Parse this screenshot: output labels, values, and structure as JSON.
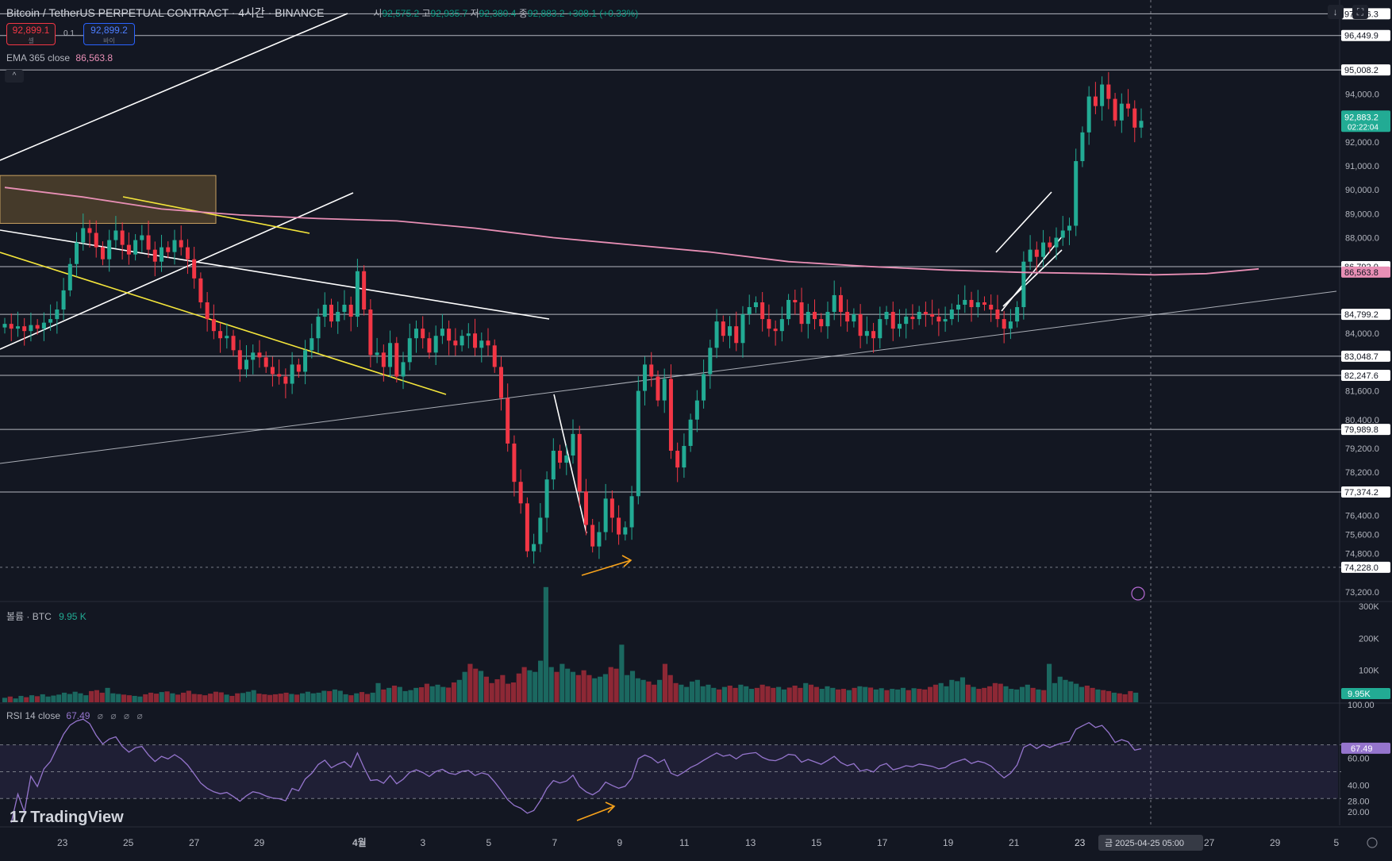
{
  "header": {
    "symbol": "Bitcoin / TetherUS PERPETUAL CONTRACT · 4시간 · BINANCE",
    "ohlc": [
      {
        "k": "시",
        "v": "92,575.2"
      },
      {
        "k": "고",
        "v": "92,935.7"
      },
      {
        "k": "저",
        "v": "92,380.4"
      },
      {
        "k": "종",
        "v": "92,883.2"
      }
    ],
    "change": "+308.1 (+0.33%)"
  },
  "trade": {
    "sell_price": "92,899.1",
    "sell_label": "셀",
    "spread": "0.1",
    "buy_price": "92,899.2",
    "buy_label": "바이"
  },
  "ema_legend": {
    "label": "EMA 365 close",
    "value": "86,563.8"
  },
  "volume_legend": {
    "label": "볼륨 · BTC",
    "value": "9.95 K"
  },
  "rsi_legend": {
    "label": "RSI 14 close",
    "value": "67.49",
    "icons": "⌀ ⌀ ⌀ ⌀"
  },
  "brand": {
    "logo_mark": "17",
    "name": "TradingView"
  },
  "icons": {
    "down_arrow": "↓",
    "fullscreen": "⛶",
    "collapse": "^"
  },
  "colors": {
    "background": "#131722",
    "up": "#22ab94",
    "down": "#f23645",
    "ema": "#e88fb5",
    "rsi": "#9575cd",
    "trendline_white": "#ffffff",
    "trendline_yellow": "#f5e63b",
    "arrow": "#f7a21b",
    "zone": "#a27a3a"
  },
  "chart_data": {
    "type": "candlestick",
    "timeframe": "4h",
    "x_ticks": [
      "23",
      "25",
      "27",
      "29",
      "4월",
      "3",
      "5",
      "7",
      "9",
      "11",
      "13",
      "15",
      "17",
      "19",
      "21",
      "23",
      "27",
      "29",
      "5"
    ],
    "current_time_label": "금 2025-04-25  05:00",
    "price_axis": {
      "tick_labels": [
        "94,000.0",
        "92,000.0",
        "91,000.0",
        "90,000.0",
        "89,000.0",
        "88,000.0",
        "84,000.0",
        "81,600.0",
        "80,400.0",
        "79,200.0",
        "78,200.0",
        "76,400.0",
        "75,600.0",
        "74,800.0",
        "73,200.0"
      ],
      "ylim": [
        72800,
        97600
      ]
    },
    "horizontal_levels": [
      97356.3,
      96449.9,
      95008.2,
      86792.0,
      84799.2,
      83048.7,
      82247.6,
      79989.8,
      77374.2
    ],
    "dashed_level": 74228.0,
    "last_price": {
      "value": "92,883.2",
      "countdown": "02:22:04"
    },
    "ema365_value": "86,563.8",
    "level_labels": [
      "97,356.3",
      "96,449.9",
      "95,008.2",
      "86,792.0",
      "84,799.2",
      "83,048.7",
      "82,247.6",
      "79,989.8",
      "77,374.2",
      "74,228.0"
    ],
    "close_path": [
      [
        0,
        84400
      ],
      [
        3,
        84200
      ],
      [
        6,
        84300
      ],
      [
        9,
        84100
      ],
      [
        12,
        84350
      ],
      [
        15,
        84200
      ],
      [
        18,
        84450
      ],
      [
        21,
        84600
      ],
      [
        24,
        85000
      ],
      [
        27,
        85800
      ],
      [
        28,
        86900
      ],
      [
        29,
        87800
      ],
      [
        30,
        88400
      ],
      [
        31,
        88200
      ],
      [
        32,
        87600
      ],
      [
        33,
        87100
      ],
      [
        34,
        87900
      ],
      [
        35,
        88300
      ],
      [
        36,
        87700
      ],
      [
        37,
        87300
      ],
      [
        38,
        87900
      ],
      [
        39,
        88100
      ],
      [
        40,
        87500
      ],
      [
        41,
        87000
      ],
      [
        42,
        87600
      ],
      [
        43,
        87400
      ],
      [
        44,
        87900
      ],
      [
        45,
        87600
      ],
      [
        46,
        87100
      ],
      [
        47,
        86300
      ],
      [
        48,
        85300
      ],
      [
        49,
        84600
      ],
      [
        50,
        84100
      ],
      [
        51,
        83800
      ],
      [
        52,
        83900
      ],
      [
        53,
        83300
      ],
      [
        54,
        82500
      ],
      [
        55,
        82900
      ],
      [
        56,
        83200
      ],
      [
        57,
        83000
      ],
      [
        58,
        82600
      ],
      [
        59,
        82300
      ],
      [
        60,
        82200
      ],
      [
        61,
        81900
      ],
      [
        62,
        82700
      ],
      [
        63,
        82400
      ],
      [
        64,
        83300
      ],
      [
        65,
        83800
      ],
      [
        66,
        84700
      ],
      [
        67,
        85200
      ],
      [
        68,
        84500
      ],
      [
        69,
        84900
      ],
      [
        70,
        85200
      ],
      [
        71,
        84700
      ],
      [
        72,
        86600
      ],
      [
        73,
        85000
      ],
      [
        74,
        83100
      ],
      [
        75,
        83200
      ],
      [
        76,
        82600
      ],
      [
        77,
        83600
      ],
      [
        78,
        82200
      ],
      [
        79,
        82800
      ],
      [
        80,
        83800
      ],
      [
        81,
        84200
      ],
      [
        82,
        83800
      ],
      [
        83,
        83200
      ],
      [
        84,
        83900
      ],
      [
        85,
        84200
      ],
      [
        86,
        83700
      ],
      [
        87,
        83500
      ],
      [
        88,
        83900
      ],
      [
        89,
        84000
      ],
      [
        90,
        83400
      ],
      [
        91,
        83700
      ],
      [
        92,
        83500
      ],
      [
        93,
        82600
      ],
      [
        94,
        81300
      ],
      [
        95,
        79400
      ],
      [
        96,
        77800
      ],
      [
        97,
        76900
      ],
      [
        98,
        74900
      ],
      [
        99,
        75200
      ],
      [
        100,
        76300
      ],
      [
        101,
        77900
      ],
      [
        102,
        79100
      ],
      [
        103,
        78600
      ],
      [
        104,
        78900
      ],
      [
        105,
        79800
      ],
      [
        106,
        77400
      ],
      [
        107,
        76000
      ],
      [
        108,
        75100
      ],
      [
        109,
        75700
      ],
      [
        110,
        77100
      ],
      [
        111,
        76300
      ],
      [
        112,
        75600
      ],
      [
        113,
        75900
      ],
      [
        114,
        77200
      ],
      [
        115,
        81600
      ],
      [
        116,
        82700
      ],
      [
        117,
        82200
      ],
      [
        118,
        81200
      ],
      [
        119,
        82100
      ],
      [
        120,
        79100
      ],
      [
        121,
        78400
      ],
      [
        122,
        79300
      ],
      [
        123,
        80400
      ],
      [
        124,
        81200
      ],
      [
        125,
        82300
      ],
      [
        126,
        83400
      ],
      [
        127,
        84500
      ],
      [
        128,
        83900
      ],
      [
        129,
        84300
      ],
      [
        130,
        83600
      ],
      [
        131,
        84800
      ],
      [
        132,
        85100
      ],
      [
        133,
        85300
      ],
      [
        134,
        84600
      ],
      [
        135,
        84200
      ],
      [
        136,
        84100
      ],
      [
        137,
        84600
      ],
      [
        138,
        85400
      ],
      [
        139,
        85300
      ],
      [
        140,
        84400
      ],
      [
        141,
        84900
      ],
      [
        142,
        84600
      ],
      [
        143,
        84300
      ],
      [
        144,
        84900
      ],
      [
        145,
        85600
      ],
      [
        146,
        84900
      ],
      [
        147,
        84500
      ],
      [
        148,
        84800
      ],
      [
        149,
        83900
      ],
      [
        150,
        84100
      ],
      [
        151,
        83800
      ],
      [
        152,
        84600
      ],
      [
        153,
        84900
      ],
      [
        154,
        84200
      ],
      [
        155,
        84400
      ],
      [
        156,
        84700
      ],
      [
        157,
        84600
      ],
      [
        158,
        84900
      ],
      [
        159,
        84800
      ],
      [
        160,
        84700
      ],
      [
        161,
        84500
      ],
      [
        162,
        84600
      ],
      [
        163,
        85000
      ],
      [
        164,
        85200
      ],
      [
        165,
        85400
      ],
      [
        166,
        85100
      ],
      [
        167,
        85300
      ],
      [
        168,
        85200
      ],
      [
        169,
        85000
      ],
      [
        170,
        84600
      ],
      [
        171,
        84200
      ],
      [
        172,
        84500
      ],
      [
        173,
        85100
      ],
      [
        174,
        87000
      ],
      [
        175,
        87500
      ],
      [
        176,
        87200
      ],
      [
        177,
        87800
      ],
      [
        178,
        87600
      ],
      [
        179,
        88000
      ],
      [
        180,
        88300
      ],
      [
        181,
        88500
      ],
      [
        182,
        91200
      ],
      [
        183,
        92400
      ],
      [
        184,
        93900
      ],
      [
        185,
        93500
      ],
      [
        186,
        94400
      ],
      [
        187,
        93800
      ],
      [
        188,
        92900
      ],
      [
        189,
        93600
      ],
      [
        190,
        93400
      ],
      [
        191,
        92600
      ],
      [
        192,
        92883
      ]
    ],
    "ema_path": [
      [
        0,
        90100
      ],
      [
        12,
        89700
      ],
      [
        24,
        89200
      ],
      [
        36,
        88950
      ],
      [
        48,
        88800
      ],
      [
        60,
        88700
      ],
      [
        72,
        88400
      ],
      [
        84,
        88000
      ],
      [
        96,
        87700
      ],
      [
        108,
        87400
      ],
      [
        120,
        87000
      ],
      [
        132,
        86800
      ],
      [
        144,
        86650
      ],
      [
        156,
        86550
      ],
      [
        168,
        86500
      ],
      [
        176,
        86450
      ],
      [
        184,
        86500
      ],
      [
        192,
        86700
      ]
    ],
    "volume": {
      "ylim": [
        0,
        300000
      ],
      "tick_labels": [
        "300K",
        "200K",
        "100K"
      ],
      "last_value": "9.95K",
      "values": [
        14,
        18,
        12,
        20,
        16,
        22,
        19,
        25,
        18,
        21,
        24,
        30,
        26,
        33,
        28,
        22,
        35,
        38,
        30,
        45,
        28,
        26,
        24,
        22,
        20,
        18,
        25,
        30,
        27,
        32,
        34,
        28,
        24,
        30,
        36,
        26,
        25,
        22,
        27,
        33,
        31,
        24,
        20,
        28,
        29,
        33,
        38,
        27,
        25,
        23,
        25,
        27,
        30,
        26,
        24,
        28,
        33,
        28,
        30,
        36,
        35,
        40,
        36,
        25,
        22,
        28,
        32,
        26,
        30,
        60,
        40,
        45,
        52,
        48,
        35,
        38,
        45,
        47,
        58,
        50,
        55,
        48,
        46,
        62,
        70,
        95,
        120,
        105,
        98,
        80,
        60,
        72,
        85,
        58,
        62,
        90,
        110,
        100,
        95,
        130,
        360,
        110,
        95,
        120,
        105,
        95,
        85,
        100,
        85,
        75,
        80,
        88,
        110,
        105,
        180,
        85,
        98,
        75,
        70,
        65,
        55,
        70,
        120,
        85,
        60,
        55,
        48,
        65,
        70,
        50,
        55,
        45,
        40,
        48,
        52,
        45,
        55,
        50,
        42,
        45,
        55,
        50,
        45,
        48,
        40,
        46,
        52,
        45,
        60,
        55,
        48,
        42,
        50,
        45,
        40,
        42,
        38,
        45,
        50,
        48,
        46,
        40,
        44,
        38,
        42,
        40,
        45,
        38,
        44,
        42,
        40,
        48,
        55,
        60,
        50,
        70,
        66,
        78,
        55,
        48,
        42,
        45,
        50,
        60,
        58,
        50,
        42,
        40,
        48,
        55,
        45,
        40,
        38,
        120,
        60,
        80,
        70,
        65,
        58,
        48,
        52,
        45,
        40,
        38,
        35,
        30,
        28,
        25,
        35,
        30
      ]
    },
    "rsi": {
      "ylim": [
        10,
        100
      ],
      "tick_labels": [
        "100.00",
        "60.00",
        "40.00",
        "28.00",
        "20.00"
      ],
      "last_value": "67.49",
      "upper_band": 70,
      "lower_band": 30,
      "mid": 50
    },
    "annotations": {
      "bullish_divergence_arrow_price": [
        74300,
        75400
      ],
      "rsi_divergence_arrow": [
        20,
        26
      ]
    }
  }
}
